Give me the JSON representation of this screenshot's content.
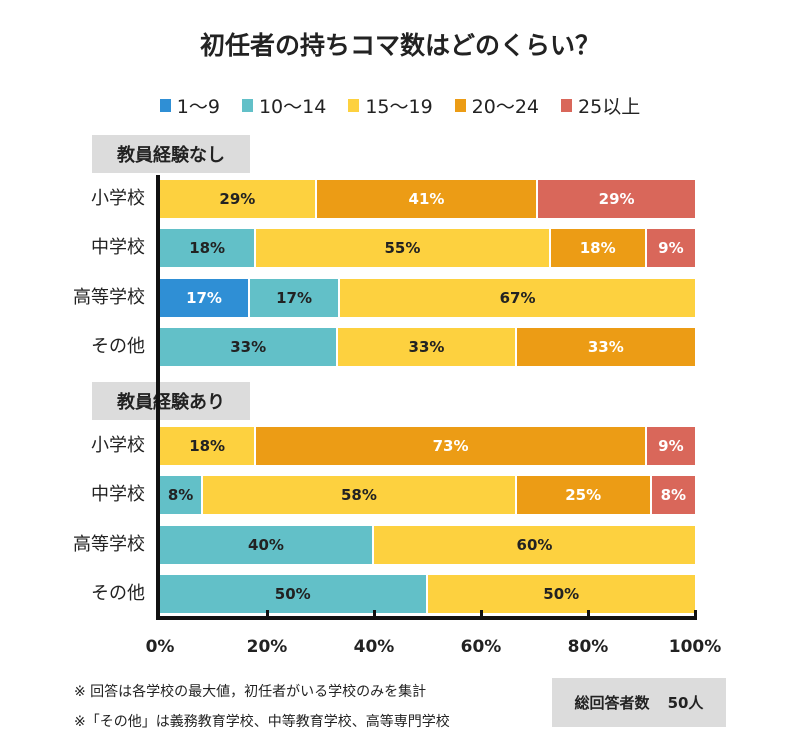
{
  "chart_data": {
    "type": "bar",
    "orientation": "horizontal-stacked-100",
    "title": "初任者の持ちコマ数はどのくらい？",
    "legend_placement": "top",
    "legend": [
      {
        "name": "1〜9",
        "color": "#2f8fd5"
      },
      {
        "name": "10〜14",
        "color": "#62c0c8"
      },
      {
        "name": "15〜19",
        "color": "#fdd13f"
      },
      {
        "name": "20〜24",
        "color": "#ec9c15"
      },
      {
        "name": "25以上",
        "color": "#d9675a"
      }
    ],
    "xlim": [
      0,
      100
    ],
    "xticks": [
      "0%",
      "20%",
      "40%",
      "60%",
      "80%",
      "100%"
    ],
    "groups": [
      {
        "label": "教員経験なし",
        "rows": [
          {
            "category": "小学校",
            "values": [
              0,
              0,
              29,
              41,
              29
            ]
          },
          {
            "category": "中学校",
            "values": [
              0,
              18,
              55,
              18,
              9
            ]
          },
          {
            "category": "高等学校",
            "values": [
              17,
              17,
              67,
              0,
              0
            ]
          },
          {
            "category": "その他",
            "values": [
              0,
              33,
              33,
              33,
              0
            ]
          }
        ]
      },
      {
        "label": "教員経験あり",
        "rows": [
          {
            "category": "小学校",
            "values": [
              0,
              0,
              18,
              73,
              9
            ]
          },
          {
            "category": "中学校",
            "values": [
              0,
              8,
              58,
              25,
              8
            ]
          },
          {
            "category": "高等学校",
            "values": [
              0,
              40,
              60,
              0,
              0
            ]
          },
          {
            "category": "その他",
            "values": [
              0,
              50,
              50,
              0,
              0
            ]
          }
        ]
      }
    ]
  },
  "notes": [
    "※ 回答は各学校の最大値，初任者がいる学校のみを集計",
    "※「その他」は義務教育学校、中等教育学校、高等専門学校"
  ],
  "total": {
    "label": "総回答者数",
    "value": "50人"
  },
  "label_text_colors": [
    "#ffffff",
    "#222222",
    "#222222",
    "#ffffff",
    "#ffffff"
  ]
}
